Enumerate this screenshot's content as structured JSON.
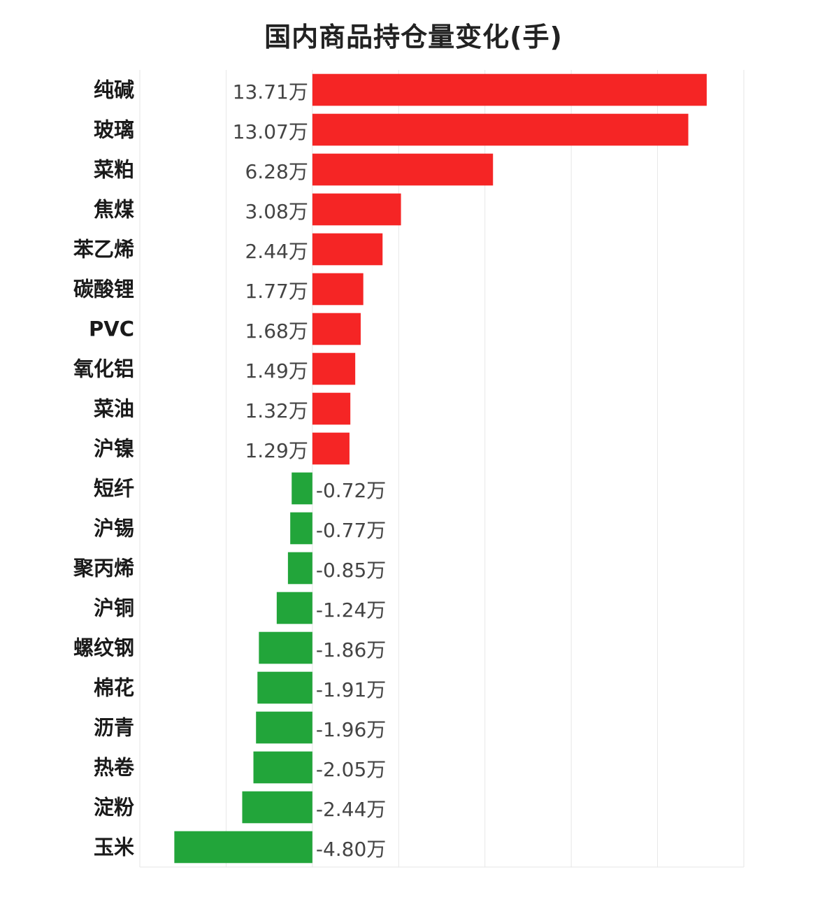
{
  "chart_data": {
    "type": "bar",
    "orientation": "horizontal",
    "title": "国内商品持仓量变化(手)",
    "unit_suffix": "万",
    "categories": [
      "纯碱",
      "玻璃",
      "菜粕",
      "焦煤",
      "苯乙烯",
      "碳酸锂",
      "PVC",
      "氧化铝",
      "菜油",
      "沪镍",
      "短纤",
      "沪锡",
      "聚丙烯",
      "沪铜",
      "螺纹钢",
      "棉花",
      "沥青",
      "热卷",
      "淀粉",
      "玉米"
    ],
    "values": [
      13.71,
      13.07,
      6.28,
      3.08,
      2.44,
      1.77,
      1.68,
      1.49,
      1.32,
      1.29,
      -0.72,
      -0.77,
      -0.85,
      -1.24,
      -1.86,
      -1.91,
      -1.96,
      -2.05,
      -2.44,
      -4.8
    ],
    "value_labels": [
      "13.71万",
      "13.07万",
      "6.28万",
      "3.08万",
      "2.44万",
      "1.77万",
      "1.68万",
      "1.49万",
      "1.32万",
      "1.29万",
      "-0.72万",
      "-0.77万",
      "-0.85万",
      "-1.24万",
      "-1.86万",
      "-1.91万",
      "-1.96万",
      "-2.05万",
      "-2.44万",
      "-4.80万"
    ],
    "xlim": [
      -6,
      15
    ],
    "grid_step": 3,
    "grid": true,
    "colors": {
      "positive": "#f52525",
      "negative": "#22a53a",
      "grid": "#e6e6e6"
    }
  }
}
